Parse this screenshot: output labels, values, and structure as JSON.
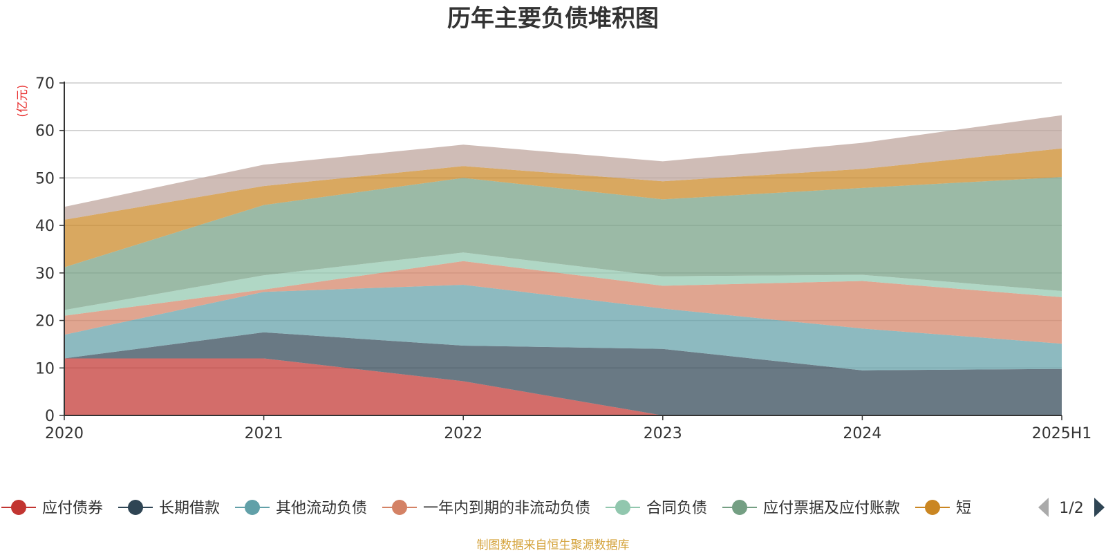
{
  "chart_data": {
    "type": "area",
    "stacked": true,
    "title": "历年主要负债堆积图",
    "ylabel": "(亿元)",
    "x": [
      "2020",
      "2021",
      "2022",
      "2023",
      "2024",
      "2025H1"
    ],
    "yticks": [
      "0",
      "10",
      "20",
      "30",
      "40",
      "50",
      "60",
      "70"
    ],
    "ylim": [
      0,
      70
    ],
    "grid": true,
    "legend_position": "bottom",
    "series": [
      {
        "name": "应付债券",
        "color": "#c23531",
        "values": [
          12.0,
          12.0,
          7.2,
          0.0,
          0.0,
          0.0
        ]
      },
      {
        "name": "长期借款",
        "color": "#2f4554",
        "values": [
          0.0,
          5.5,
          7.5,
          14.0,
          9.5,
          9.8
        ]
      },
      {
        "name": "其他流动负债",
        "color": "#61a0a8",
        "values": [
          5.0,
          8.5,
          12.8,
          8.5,
          8.8,
          5.3
        ]
      },
      {
        "name": "一年内到期的非流动负债",
        "color": "#d48265",
        "values": [
          4.0,
          0.5,
          5.0,
          4.8,
          10.0,
          9.8
        ]
      },
      {
        "name": "合同负债",
        "color": "#91c7ae",
        "values": [
          1.2,
          3.0,
          1.8,
          2.0,
          1.3,
          1.3
        ]
      },
      {
        "name": "应付票据及应付账款",
        "color": "#749f83",
        "values": [
          9.0,
          14.8,
          15.7,
          16.2,
          18.3,
          24.0
        ]
      },
      {
        "name": "短",
        "color": "#ca8622",
        "values": [
          10.0,
          4.0,
          2.5,
          3.8,
          4.0,
          6.0
        ]
      },
      {
        "color": "#bda29a",
        "values": [
          2.7,
          4.5,
          4.5,
          4.2,
          5.5,
          7.0
        ]
      }
    ],
    "legend_page": "1/2",
    "source": "制图数据来自恒生聚源数据库"
  }
}
